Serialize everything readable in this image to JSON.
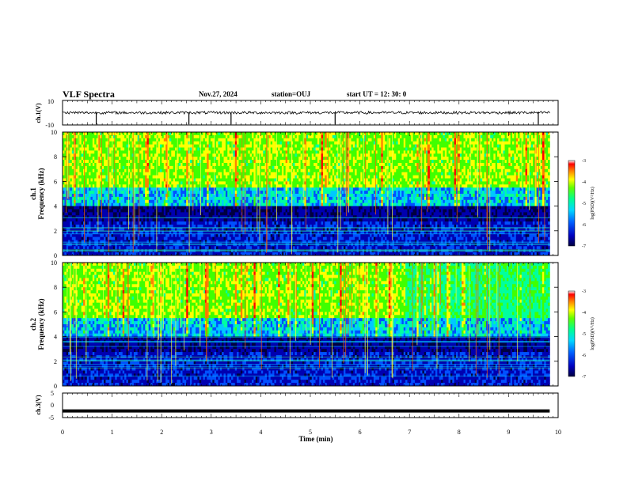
{
  "header": {
    "title": "VLF Spectra",
    "date": "Nov.27, 2024",
    "station": "station=OUJ",
    "start_ut": "start UT =  12: 30: 0"
  },
  "colors": {
    "background": "#ffffff",
    "axis": "#000000",
    "colormap": [
      "#000040",
      "#0000b0",
      "#0050ff",
      "#00c8ff",
      "#00ffa0",
      "#40ff00",
      "#ffff00",
      "#ff8000",
      "#ff0000",
      "#ffffff"
    ]
  },
  "chart_data": [
    {
      "type": "line",
      "id": "ch1-waveform",
      "ylabel": "ch.1(V)",
      "ylim": [
        -10,
        10
      ],
      "yticks": [
        "10",
        "-10"
      ],
      "xlim": [
        0,
        10
      ],
      "series_level_v": 0,
      "spikes_at_min": [
        0.68,
        2.55,
        3.4,
        5.5,
        9.6
      ]
    },
    {
      "type": "heatmap",
      "id": "ch1-spectrogram",
      "ylabel": "ch.1",
      "ylabel2": "Frequency (kHz)",
      "ylim": [
        0,
        10
      ],
      "yticks": [
        "0",
        "2",
        "4",
        "6",
        "8",
        "10"
      ],
      "xlim": [
        0,
        10
      ],
      "data_end_min": 9.83,
      "colorbar": {
        "label": "log(PSD)(V²/Hz)",
        "range": [
          -7,
          -3
        ],
        "ticks": [
          "-3",
          "-4",
          "-5",
          "-6",
          "-7"
        ]
      }
    },
    {
      "type": "heatmap",
      "id": "ch2-spectrogram",
      "ylabel": "ch.2",
      "ylabel2": "Frequency (kHz)",
      "ylim": [
        0,
        10
      ],
      "yticks": [
        "0",
        "2",
        "4",
        "6",
        "8",
        "10"
      ],
      "xlim": [
        0,
        10
      ],
      "data_end_min": 9.83,
      "colorbar": {
        "label": "log(PSD)(V²/Hz)",
        "range": [
          -7,
          -3
        ],
        "ticks": [
          "-3",
          "-4",
          "-5",
          "-6",
          "-7"
        ]
      }
    },
    {
      "type": "line",
      "id": "ch3-waveform",
      "ylabel": "ch.3(V)",
      "ylim": [
        -5,
        5
      ],
      "yticks": [
        "5",
        "0",
        "-5"
      ],
      "xlim": [
        0,
        10
      ],
      "series_level_v": -2.3
    }
  ],
  "xaxis": {
    "label": "Time (min)",
    "ticks": [
      "0",
      "1",
      "2",
      "3",
      "4",
      "5",
      "6",
      "7",
      "8",
      "9",
      "10"
    ]
  }
}
